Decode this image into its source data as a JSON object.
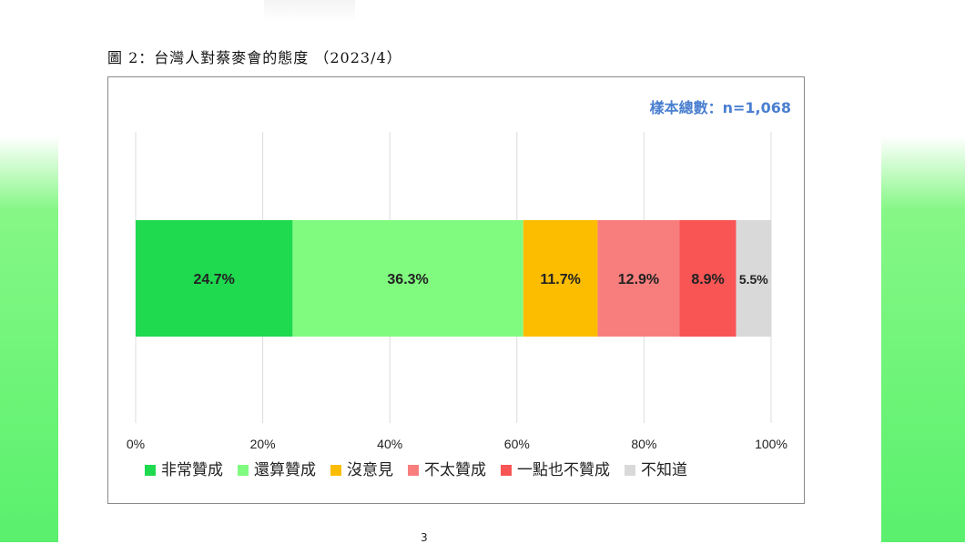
{
  "figure": {
    "caption": "圖 2：台灣人對蔡麥會的態度 （2023/4）",
    "sample_note": "樣本總數：n=1,068",
    "page_number": "3"
  },
  "chart_data": {
    "type": "bar",
    "orientation": "horizontal-stacked",
    "title": "",
    "xlabel": "",
    "ylabel": "",
    "xlim": [
      0,
      100
    ],
    "x_ticks": [
      "0%",
      "20%",
      "40%",
      "60%",
      "80%",
      "100%"
    ],
    "grid": true,
    "legend_position": "bottom",
    "series": [
      {
        "name": "非常贊成",
        "value": 24.7,
        "label": "24.7%",
        "color": "#1fd94f"
      },
      {
        "name": "還算贊成",
        "value": 36.3,
        "label": "36.3%",
        "color": "#80fb80"
      },
      {
        "name": "沒意見",
        "value": 11.7,
        "label": "11.7%",
        "color": "#fcbd00"
      },
      {
        "name": "不太贊成",
        "value": 12.9,
        "label": "12.9%",
        "color": "#f87e7e"
      },
      {
        "name": "一點也不贊成",
        "value": 8.9,
        "label": "8.9%",
        "color": "#f95555"
      },
      {
        "name": "不知道",
        "value": 5.5,
        "label": "5.5%",
        "color": "#d9d9d9"
      }
    ]
  }
}
